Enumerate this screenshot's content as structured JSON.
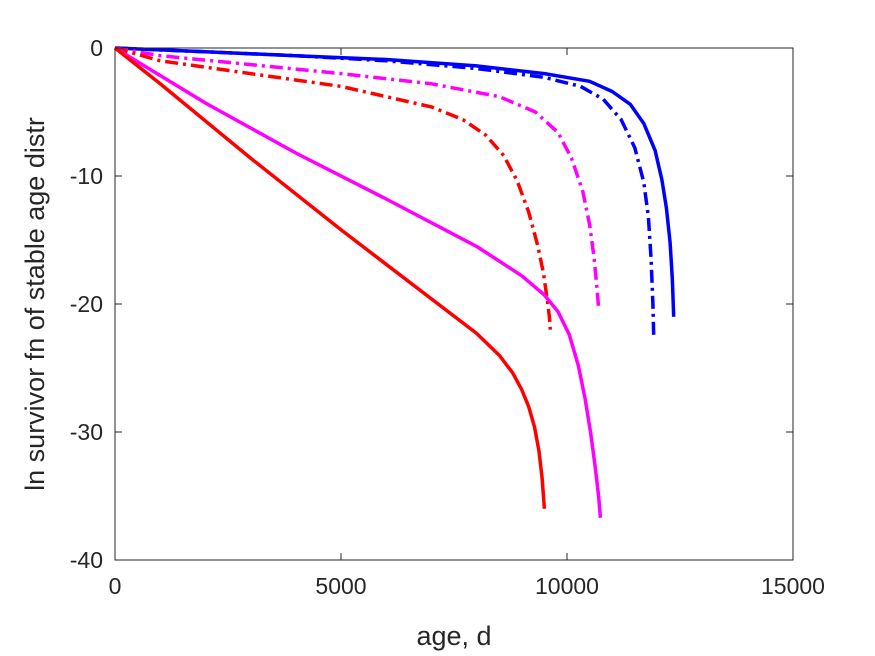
{
  "chart_data": {
    "type": "line",
    "title": "",
    "xlabel": "age, d",
    "ylabel": "ln survivor fn of stable age distr",
    "xlim": [
      0,
      15000
    ],
    "ylim": [
      -40,
      0
    ],
    "xticks": [
      0,
      5000,
      10000,
      15000
    ],
    "yticks": [
      -40,
      -30,
      -20,
      -10,
      0
    ],
    "xtick_labels": [
      "0",
      "5000",
      "10000",
      "15000"
    ],
    "ytick_labels": [
      "-40",
      "-30",
      "-20",
      "-10",
      "0"
    ],
    "grid": false,
    "legend": "none",
    "series": [
      {
        "color": "#0000ff",
        "style": "solid",
        "x": [
          0,
          2000,
          4000,
          6000,
          8000,
          9500,
          10500,
          11000,
          11400,
          11700,
          11950,
          12100,
          12200,
          12280,
          12330,
          12360
        ],
        "y": [
          0,
          -0.3,
          -0.6,
          -0.9,
          -1.4,
          -2.0,
          -2.6,
          -3.4,
          -4.4,
          -5.9,
          -8.0,
          -10.3,
          -12.5,
          -15.2,
          -18.0,
          -21.0
        ]
      },
      {
        "color": "#0000ff",
        "style": "dashdot",
        "x": [
          0,
          2000,
          4000,
          6000,
          8000,
          9500,
          10300,
          10800,
          11200,
          11500,
          11700,
          11800,
          11860,
          11900,
          11920
        ],
        "y": [
          0,
          -0.3,
          -0.6,
          -1.0,
          -1.6,
          -2.3,
          -3.0,
          -4.0,
          -5.6,
          -7.8,
          -10.5,
          -13.2,
          -16.5,
          -20.0,
          -22.8
        ]
      },
      {
        "color": "#ff00ff",
        "style": "dashdot",
        "x": [
          0,
          1000,
          3000,
          5000,
          7000,
          8500,
          9300,
          9800,
          10100,
          10350,
          10500,
          10600,
          10660,
          10700
        ],
        "y": [
          0,
          -0.6,
          -1.3,
          -2.0,
          -2.8,
          -3.8,
          -5.0,
          -6.6,
          -8.6,
          -11.2,
          -13.8,
          -16.4,
          -18.6,
          -20.3
        ]
      },
      {
        "color": "#ff0000",
        "style": "dashdot",
        "x": [
          0,
          1000,
          3000,
          5000,
          7000,
          7700,
          8200,
          8600,
          8900,
          9150,
          9350,
          9480,
          9560,
          9610,
          9630
        ],
        "y": [
          0,
          -1.0,
          -2.0,
          -3.0,
          -4.6,
          -5.6,
          -6.8,
          -8.4,
          -10.4,
          -12.8,
          -15.4,
          -17.6,
          -19.6,
          -21.0,
          -22.0
        ]
      },
      {
        "color": "#ff00ff",
        "style": "solid",
        "x": [
          0,
          2000,
          4000,
          6000,
          8000,
          9000,
          9500,
          9800,
          10050,
          10250,
          10400,
          10520,
          10620,
          10700,
          10740
        ],
        "y": [
          0,
          -4.3,
          -8.2,
          -11.8,
          -15.5,
          -17.8,
          -19.3,
          -20.6,
          -22.4,
          -24.8,
          -27.4,
          -30.0,
          -32.6,
          -35.0,
          -36.7
        ]
      },
      {
        "color": "#ff0000",
        "style": "solid",
        "x": [
          0,
          1000,
          3000,
          5000,
          7000,
          8000,
          8500,
          8800,
          9000,
          9150,
          9280,
          9380,
          9450,
          9500
        ],
        "y": [
          0,
          -2.8,
          -8.6,
          -14.2,
          -19.6,
          -22.3,
          -24.0,
          -25.4,
          -26.7,
          -28.0,
          -29.6,
          -31.5,
          -33.6,
          -36.0
        ]
      }
    ]
  }
}
